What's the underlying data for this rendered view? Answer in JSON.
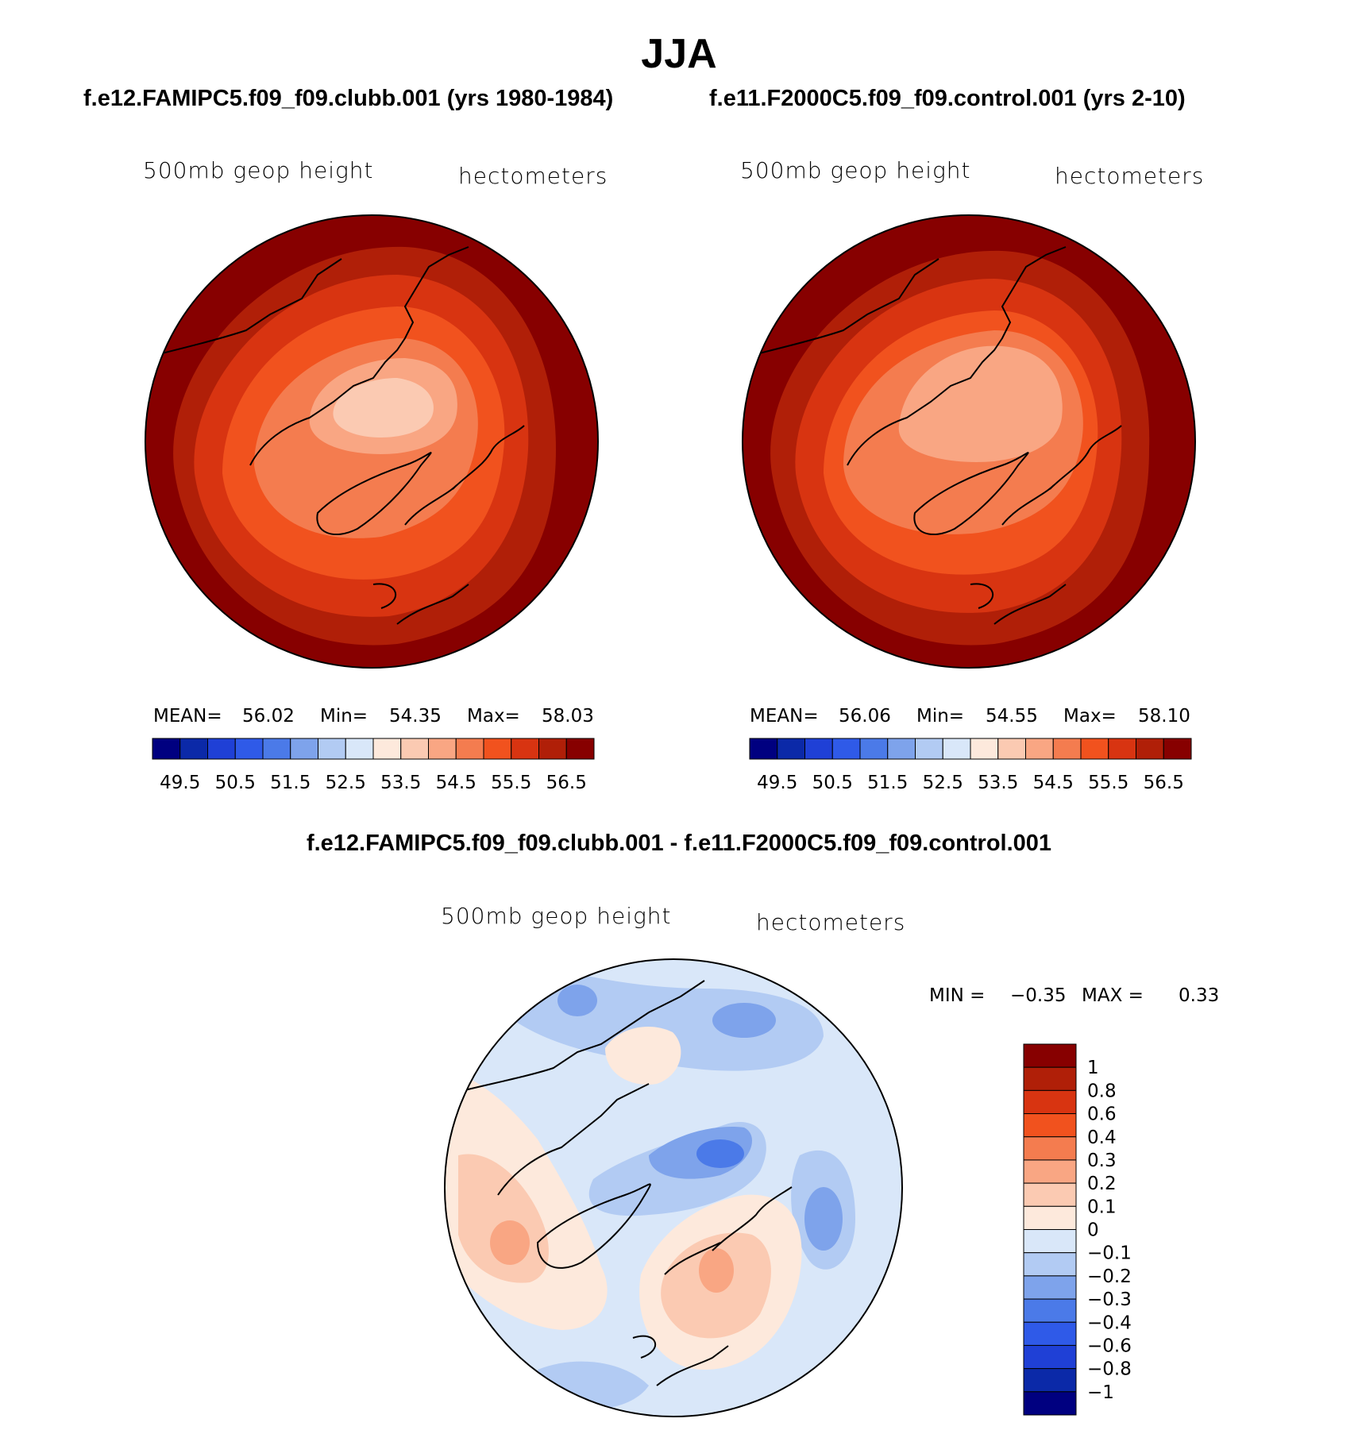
{
  "figure": {
    "title": "JJA",
    "diff_title": "f.e12.FAMIPC5.f09_f09.clubb.001 - f.e11.F2000C5.f09_f09.control.001"
  },
  "chart_data": [
    {
      "type": "contour_map",
      "projection": "polar stereographic (North Pole)",
      "case_title": "f.e12.FAMIPC5.f09_f09.clubb.001 (yrs 1980-1984)",
      "variable_label": "500mb geop height",
      "units_label": "hectometers",
      "stats": {
        "mean_label": "MEAN=",
        "mean": "56.02",
        "min_label": "Min=",
        "min": "54.35",
        "max_label": "Max=",
        "max": "58.03"
      },
      "contour_levels": [
        49.5,
        50,
        50.5,
        51,
        51.5,
        52,
        52.5,
        53,
        53.5,
        54,
        54.5,
        55,
        55.5,
        56,
        56.5
      ],
      "colorbar_tick_labels": [
        "49.5",
        "50.5",
        "51.5",
        "52.5",
        "53.5",
        "54.5",
        "55.5",
        "56.5"
      ],
      "colors": [
        "#000080",
        "#0b29a8",
        "#1f40d6",
        "#2f5ae8",
        "#4b7ae8",
        "#7ea3eb",
        "#b2cbf3",
        "#d9e7f9",
        "#fde9dc",
        "#fbcab2",
        "#f9a683",
        "#f47c4f",
        "#f1521e",
        "#d83411",
        "#b01f08",
        "#870000"
      ]
    },
    {
      "type": "contour_map",
      "projection": "polar stereographic (North Pole)",
      "case_title": "f.e11.F2000C5.f09_f09.control.001 (yrs 2-10)",
      "variable_label": "500mb geop height",
      "units_label": "hectometers",
      "stats": {
        "mean_label": "MEAN=",
        "mean": "56.06",
        "min_label": "Min=",
        "min": "54.55",
        "max_label": "Max=",
        "max": "58.10"
      },
      "contour_levels": [
        49.5,
        50,
        50.5,
        51,
        51.5,
        52,
        52.5,
        53,
        53.5,
        54,
        54.5,
        55,
        55.5,
        56,
        56.5
      ],
      "colorbar_tick_labels": [
        "49.5",
        "50.5",
        "51.5",
        "52.5",
        "53.5",
        "54.5",
        "55.5",
        "56.5"
      ],
      "colors": [
        "#000080",
        "#0b29a8",
        "#1f40d6",
        "#2f5ae8",
        "#4b7ae8",
        "#7ea3eb",
        "#b2cbf3",
        "#d9e7f9",
        "#fde9dc",
        "#fbcab2",
        "#f9a683",
        "#f47c4f",
        "#f1521e",
        "#d83411",
        "#b01f08",
        "#870000"
      ]
    },
    {
      "type": "contour_map_difference",
      "projection": "polar stereographic (North Pole)",
      "variable_label": "500mb geop height",
      "units_label": "hectometers",
      "stats": {
        "min_label": "MIN =",
        "min": "−0.35",
        "max_label": "MAX =",
        "max": "0.33"
      },
      "contour_levels": [
        -1,
        -0.8,
        -0.6,
        -0.4,
        -0.3,
        -0.2,
        -0.1,
        0,
        0.1,
        0.2,
        0.3,
        0.4,
        0.6,
        0.8,
        1
      ],
      "colorbar_tick_labels": [
        "−1",
        "−0.8",
        "−0.6",
        "−0.4",
        "−0.3",
        "−0.2",
        "−0.1",
        "0",
        "0.1",
        "0.2",
        "0.3",
        "0.4",
        "0.6",
        "0.8",
        "1"
      ],
      "colors": [
        "#000080",
        "#0b29a8",
        "#1f40d6",
        "#2f5ae8",
        "#4b7ae8",
        "#7ea3eb",
        "#b2cbf3",
        "#d9e7f9",
        "#fde9dc",
        "#fbcab2",
        "#f9a683",
        "#f47c4f",
        "#f1521e",
        "#d83411",
        "#b01f08",
        "#870000"
      ]
    }
  ]
}
